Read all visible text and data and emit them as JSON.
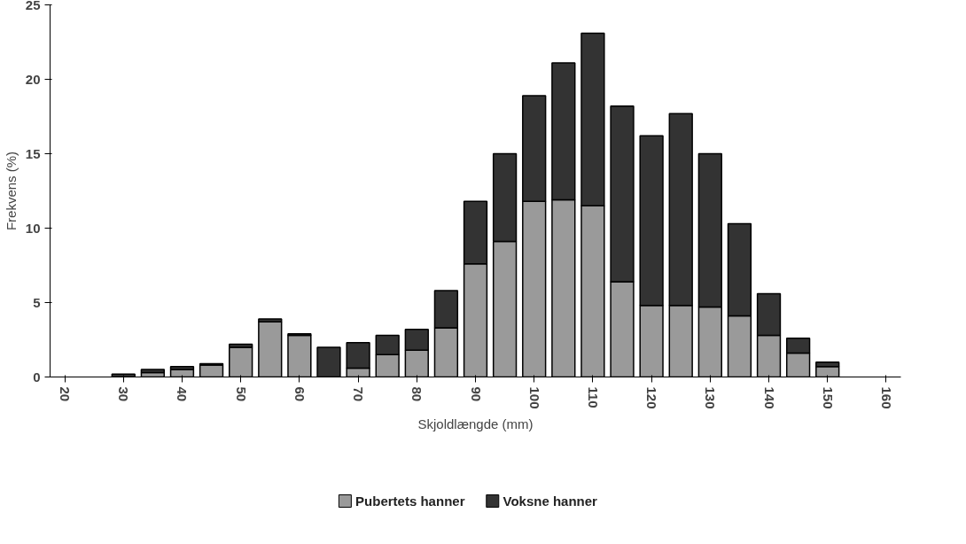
{
  "chart_data": {
    "type": "bar",
    "stacked": true,
    "xlabel": "Skjoldlængde (mm)",
    "ylabel": "Frekvens (%)",
    "categories": [
      "20",
      null,
      "30",
      null,
      "40",
      null,
      "50",
      null,
      "60",
      null,
      "70",
      null,
      "80",
      null,
      "90",
      null,
      "100",
      null,
      "110",
      null,
      "120",
      null,
      "130",
      null,
      "140",
      null,
      "150",
      null,
      "160"
    ],
    "series": [
      {
        "name": "Pubertets hanner",
        "color": "#9a9a9a",
        "values": [
          null,
          null,
          0,
          0.3,
          0.5,
          0.8,
          2.0,
          3.7,
          2.8,
          0,
          0.6,
          1.5,
          1.8,
          3.3,
          7.6,
          9.1,
          11.8,
          11.9,
          11.5,
          6.4,
          4.8,
          4.8,
          4.7,
          4.1,
          2.8,
          1.6,
          0.7,
          null,
          null
        ]
      },
      {
        "name": "Voksne hanner",
        "color": "#333333",
        "values": [
          null,
          null,
          0.2,
          0.2,
          0.2,
          0.1,
          0.2,
          0.2,
          0.1,
          2.0,
          1.7,
          1.3,
          1.4,
          2.5,
          4.2,
          5.9,
          7.1,
          9.2,
          11.6,
          11.8,
          11.4,
          12.9,
          10.3,
          6.2,
          2.8,
          1.0,
          0.3,
          null,
          null
        ]
      }
    ],
    "ylim": [
      0,
      25
    ],
    "yticks": [
      0,
      5,
      10,
      15,
      20,
      25
    ],
    "grid": false,
    "legend": "bottom"
  }
}
